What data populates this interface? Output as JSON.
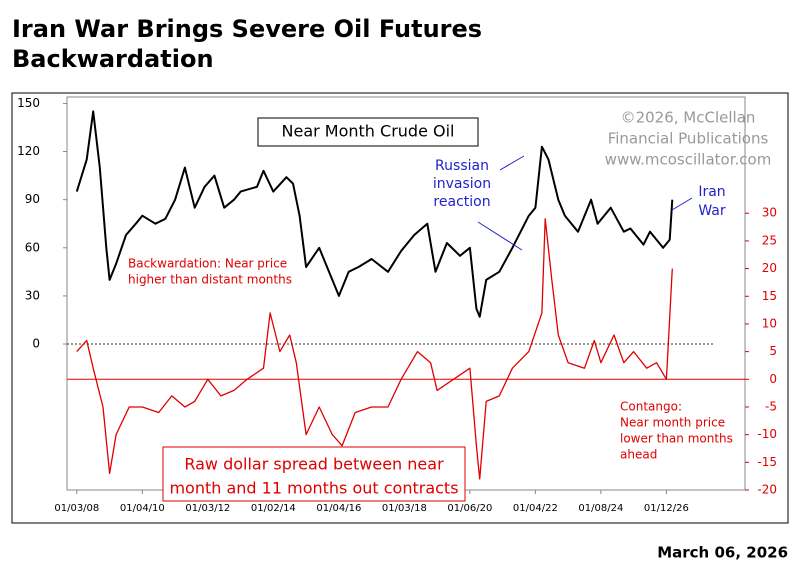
{
  "title": "Iran War Brings Severe Oil Futures Backwardation",
  "date": "March 06, 2026",
  "chart_data": {
    "type": "line",
    "title": "Near Month Crude Oil",
    "credit": [
      "©2026, McClellan",
      "Financial Publications",
      "www.mcoscillator.com"
    ],
    "annotations": {
      "russia": [
        "Russian",
        "invasion",
        "reaction"
      ],
      "iran": [
        "Iran",
        "War"
      ],
      "backwardation": [
        "Backwardation: Near price",
        "higher than distant months"
      ],
      "contango": [
        "Contango:",
        "Near month price",
        "lower than months",
        "ahead"
      ],
      "spread": [
        "Raw dollar spread between near",
        "month and 11 months out contracts"
      ]
    },
    "xlim": [
      2007.7,
      2028.4
    ],
    "xticks": [
      {
        "value": 2008.0,
        "label": "01/03/08"
      },
      {
        "value": 2010.0,
        "label": "01/04/10"
      },
      {
        "value": 2012.0,
        "label": "01/03/12"
      },
      {
        "value": 2014.0,
        "label": "01/02/14"
      },
      {
        "value": 2016.0,
        "label": "01/04/16"
      },
      {
        "value": 2018.0,
        "label": "01/03/18"
      },
      {
        "value": 2020.0,
        "label": "01/06/20"
      },
      {
        "value": 2022.0,
        "label": "01/04/22"
      },
      {
        "value": 2024.0,
        "label": "01/08/24"
      },
      {
        "value": 2026.0,
        "label": "01/12/26"
      }
    ],
    "ylim": [
      -91,
      154
    ],
    "yticks": [
      0,
      30,
      60,
      90,
      120,
      150
    ],
    "y2lim": [
      -20,
      51
    ],
    "y2ticks": [
      -20,
      -15,
      -10,
      -5,
      0,
      5,
      10,
      15,
      20,
      25,
      30
    ],
    "series": [
      {
        "name": "Near Month Crude Oil",
        "color": "#000000",
        "x": [
          2008.0,
          2008.3,
          2008.5,
          2008.7,
          2008.9,
          2009.0,
          2009.2,
          2009.5,
          2009.8,
          2010.0,
          2010.4,
          2010.7,
          2011.0,
          2011.3,
          2011.6,
          2011.9,
          2012.2,
          2012.5,
          2012.8,
          2013.0,
          2013.5,
          2013.7,
          2014.0,
          2014.4,
          2014.6,
          2014.8,
          2015.0,
          2015.4,
          2015.7,
          2016.0,
          2016.3,
          2016.6,
          2017.0,
          2017.5,
          2017.9,
          2018.3,
          2018.7,
          2018.95,
          2019.3,
          2019.7,
          2020.0,
          2020.2,
          2020.3,
          2020.5,
          2020.9,
          2021.3,
          2021.8,
          2022.0,
          2022.2,
          2022.4,
          2022.7,
          2022.9,
          2023.3,
          2023.7,
          2023.9,
          2024.3,
          2024.7,
          2024.9,
          2025.3,
          2025.5,
          2025.9,
          2026.1,
          2026.18
        ],
        "values": [
          95,
          115,
          145,
          110,
          60,
          40,
          50,
          68,
          75,
          80,
          75,
          78,
          90,
          110,
          85,
          98,
          105,
          85,
          90,
          95,
          98,
          108,
          95,
          104,
          100,
          80,
          48,
          60,
          45,
          30,
          45,
          48,
          53,
          45,
          58,
          68,
          75,
          45,
          63,
          55,
          60,
          22,
          17,
          40,
          45,
          60,
          80,
          85,
          123,
          115,
          90,
          80,
          70,
          90,
          75,
          85,
          70,
          72,
          62,
          70,
          60,
          65,
          90
        ]
      },
      {
        "name": "Raw dollar spread",
        "color": "#e00000",
        "axis": "y2",
        "x": [
          2008.0,
          2008.3,
          2008.5,
          2008.8,
          2009.0,
          2009.2,
          2009.6,
          2010.0,
          2010.5,
          2010.9,
          2011.3,
          2011.6,
          2012.0,
          2012.4,
          2012.8,
          2013.2,
          2013.7,
          2013.9,
          2014.2,
          2014.5,
          2014.7,
          2015.0,
          2015.4,
          2015.8,
          2016.1,
          2016.5,
          2017.0,
          2017.5,
          2017.9,
          2018.4,
          2018.8,
          2019.0,
          2019.5,
          2020.0,
          2020.2,
          2020.3,
          2020.5,
          2020.9,
          2021.3,
          2021.8,
          2022.2,
          2022.3,
          2022.5,
          2022.7,
          2023.0,
          2023.5,
          2023.8,
          2024.0,
          2024.4,
          2024.7,
          2025.0,
          2025.4,
          2025.7,
          2026.0,
          2026.18
        ],
        "values": [
          5,
          7,
          2,
          -5,
          -17,
          -10,
          -5,
          -5,
          -6,
          -3,
          -5,
          -4,
          0,
          -3,
          -2,
          0,
          2,
          12,
          5,
          8,
          3,
          -10,
          -5,
          -10,
          -12,
          -6,
          -5,
          -5,
          0,
          5,
          3,
          -2,
          0,
          2,
          -12,
          -18,
          -4,
          -3,
          2,
          5,
          12,
          29,
          18,
          8,
          3,
          2,
          7,
          3,
          8,
          3,
          5,
          2,
          3,
          0,
          20
        ]
      }
    ]
  }
}
